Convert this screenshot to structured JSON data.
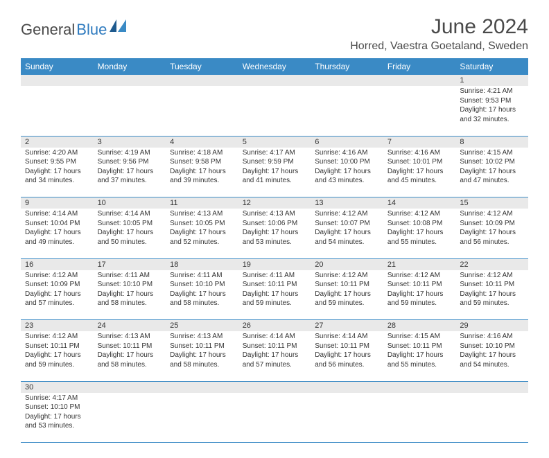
{
  "logo": {
    "text1": "General",
    "text2": "Blue"
  },
  "title": "June 2024",
  "location": "Horred, Vaestra Goetaland, Sweden",
  "colors": {
    "header_bg": "#3a8ac5",
    "header_text": "#ffffff",
    "daynum_bg": "#e9e9e9",
    "border": "#3a8ac5",
    "text": "#333333",
    "title": "#4a4a4a",
    "logo_blue": "#2f7bbf"
  },
  "dayHeaders": [
    "Sunday",
    "Monday",
    "Tuesday",
    "Wednesday",
    "Thursday",
    "Friday",
    "Saturday"
  ],
  "weeks": [
    [
      null,
      null,
      null,
      null,
      null,
      null,
      {
        "n": "1",
        "sr": "4:21 AM",
        "ss": "9:53 PM",
        "dl": "17 hours and 32 minutes."
      }
    ],
    [
      {
        "n": "2",
        "sr": "4:20 AM",
        "ss": "9:55 PM",
        "dl": "17 hours and 34 minutes."
      },
      {
        "n": "3",
        "sr": "4:19 AM",
        "ss": "9:56 PM",
        "dl": "17 hours and 37 minutes."
      },
      {
        "n": "4",
        "sr": "4:18 AM",
        "ss": "9:58 PM",
        "dl": "17 hours and 39 minutes."
      },
      {
        "n": "5",
        "sr": "4:17 AM",
        "ss": "9:59 PM",
        "dl": "17 hours and 41 minutes."
      },
      {
        "n": "6",
        "sr": "4:16 AM",
        "ss": "10:00 PM",
        "dl": "17 hours and 43 minutes."
      },
      {
        "n": "7",
        "sr": "4:16 AM",
        "ss": "10:01 PM",
        "dl": "17 hours and 45 minutes."
      },
      {
        "n": "8",
        "sr": "4:15 AM",
        "ss": "10:02 PM",
        "dl": "17 hours and 47 minutes."
      }
    ],
    [
      {
        "n": "9",
        "sr": "4:14 AM",
        "ss": "10:04 PM",
        "dl": "17 hours and 49 minutes."
      },
      {
        "n": "10",
        "sr": "4:14 AM",
        "ss": "10:05 PM",
        "dl": "17 hours and 50 minutes."
      },
      {
        "n": "11",
        "sr": "4:13 AM",
        "ss": "10:05 PM",
        "dl": "17 hours and 52 minutes."
      },
      {
        "n": "12",
        "sr": "4:13 AM",
        "ss": "10:06 PM",
        "dl": "17 hours and 53 minutes."
      },
      {
        "n": "13",
        "sr": "4:12 AM",
        "ss": "10:07 PM",
        "dl": "17 hours and 54 minutes."
      },
      {
        "n": "14",
        "sr": "4:12 AM",
        "ss": "10:08 PM",
        "dl": "17 hours and 55 minutes."
      },
      {
        "n": "15",
        "sr": "4:12 AM",
        "ss": "10:09 PM",
        "dl": "17 hours and 56 minutes."
      }
    ],
    [
      {
        "n": "16",
        "sr": "4:12 AM",
        "ss": "10:09 PM",
        "dl": "17 hours and 57 minutes."
      },
      {
        "n": "17",
        "sr": "4:11 AM",
        "ss": "10:10 PM",
        "dl": "17 hours and 58 minutes."
      },
      {
        "n": "18",
        "sr": "4:11 AM",
        "ss": "10:10 PM",
        "dl": "17 hours and 58 minutes."
      },
      {
        "n": "19",
        "sr": "4:11 AM",
        "ss": "10:11 PM",
        "dl": "17 hours and 59 minutes."
      },
      {
        "n": "20",
        "sr": "4:12 AM",
        "ss": "10:11 PM",
        "dl": "17 hours and 59 minutes."
      },
      {
        "n": "21",
        "sr": "4:12 AM",
        "ss": "10:11 PM",
        "dl": "17 hours and 59 minutes."
      },
      {
        "n": "22",
        "sr": "4:12 AM",
        "ss": "10:11 PM",
        "dl": "17 hours and 59 minutes."
      }
    ],
    [
      {
        "n": "23",
        "sr": "4:12 AM",
        "ss": "10:11 PM",
        "dl": "17 hours and 59 minutes."
      },
      {
        "n": "24",
        "sr": "4:13 AM",
        "ss": "10:11 PM",
        "dl": "17 hours and 58 minutes."
      },
      {
        "n": "25",
        "sr": "4:13 AM",
        "ss": "10:11 PM",
        "dl": "17 hours and 58 minutes."
      },
      {
        "n": "26",
        "sr": "4:14 AM",
        "ss": "10:11 PM",
        "dl": "17 hours and 57 minutes."
      },
      {
        "n": "27",
        "sr": "4:14 AM",
        "ss": "10:11 PM",
        "dl": "17 hours and 56 minutes."
      },
      {
        "n": "28",
        "sr": "4:15 AM",
        "ss": "10:11 PM",
        "dl": "17 hours and 55 minutes."
      },
      {
        "n": "29",
        "sr": "4:16 AM",
        "ss": "10:10 PM",
        "dl": "17 hours and 54 minutes."
      }
    ],
    [
      {
        "n": "30",
        "sr": "4:17 AM",
        "ss": "10:10 PM",
        "dl": "17 hours and 53 minutes."
      },
      null,
      null,
      null,
      null,
      null,
      null
    ]
  ],
  "labels": {
    "sunrise": "Sunrise: ",
    "sunset": "Sunset: ",
    "daylight": "Daylight: "
  }
}
